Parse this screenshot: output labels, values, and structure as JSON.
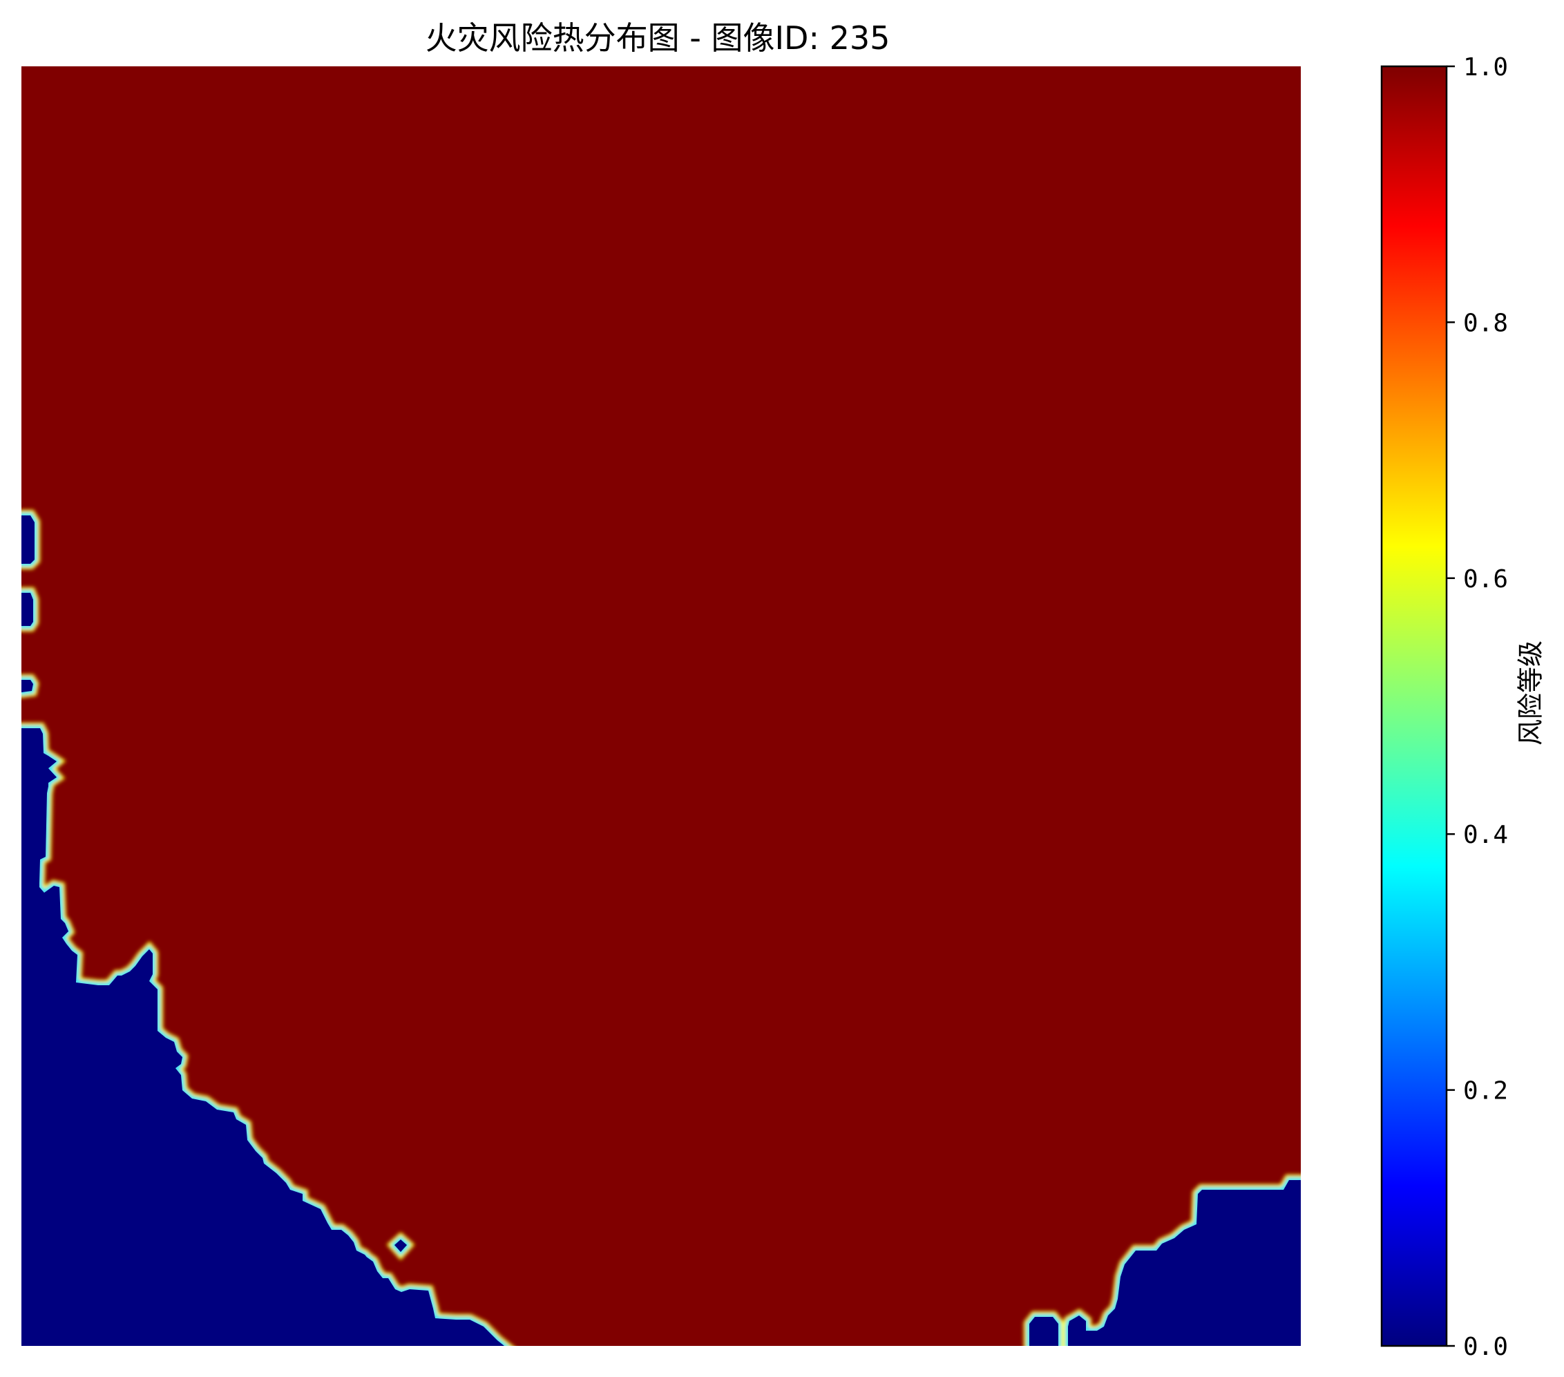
{
  "chart_data": {
    "type": "heatmap",
    "title": "火灾风险热分布图 - 图像ID: 235",
    "colormap": "jet",
    "axes_visible": false,
    "value_range": [
      0,
      1
    ],
    "regions": [
      {
        "name": "high-risk",
        "value": 1.0,
        "color": "#800000"
      },
      {
        "name": "low-risk",
        "value": 0.0,
        "color": "#00007f"
      }
    ],
    "colorbar": {
      "label": "风险等级",
      "ticks": [
        {
          "value": 0.0,
          "label": "0.0"
        },
        {
          "value": 0.2,
          "label": "0.2"
        },
        {
          "value": 0.4,
          "label": "0.4"
        },
        {
          "value": 0.6,
          "label": "0.6"
        },
        {
          "value": 0.8,
          "label": "0.8"
        },
        {
          "value": 1.0,
          "label": "1.0"
        }
      ],
      "gradient": [
        "#00007f",
        "#0000ff",
        "#007fff",
        "#00ffff",
        "#7fff7f",
        "#ffff00",
        "#ff7f00",
        "#ff0000",
        "#7f0000"
      ]
    }
  }
}
